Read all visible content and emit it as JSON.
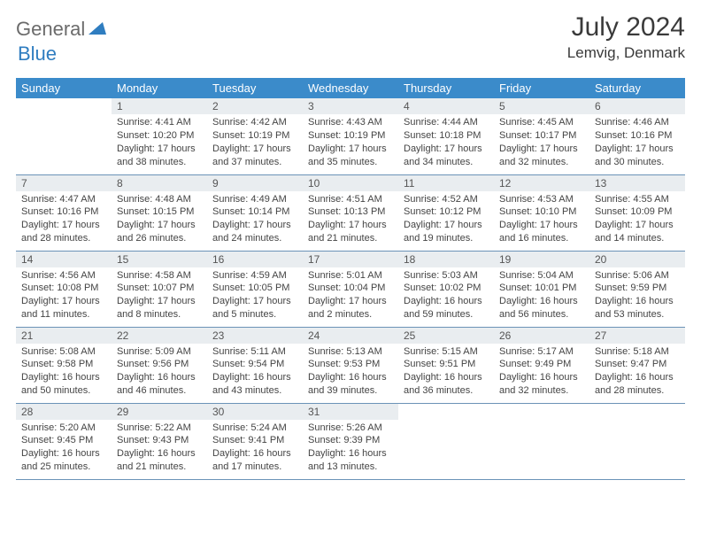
{
  "logo": {
    "part1": "General",
    "part2": "Blue"
  },
  "title": "July 2024",
  "location": "Lemvig, Denmark",
  "colors": {
    "header_bg": "#3b8bca",
    "header_text": "#ffffff",
    "daynum_bg": "#e9edf0",
    "border": "#6b93b7",
    "logo_gray": "#6b6b6b",
    "logo_blue": "#2f7dc0"
  },
  "weekdays": [
    "Sunday",
    "Monday",
    "Tuesday",
    "Wednesday",
    "Thursday",
    "Friday",
    "Saturday"
  ],
  "weeks": [
    [
      {
        "num": "",
        "lines": []
      },
      {
        "num": "1",
        "lines": [
          "Sunrise: 4:41 AM",
          "Sunset: 10:20 PM",
          "Daylight: 17 hours",
          "and 38 minutes."
        ]
      },
      {
        "num": "2",
        "lines": [
          "Sunrise: 4:42 AM",
          "Sunset: 10:19 PM",
          "Daylight: 17 hours",
          "and 37 minutes."
        ]
      },
      {
        "num": "3",
        "lines": [
          "Sunrise: 4:43 AM",
          "Sunset: 10:19 PM",
          "Daylight: 17 hours",
          "and 35 minutes."
        ]
      },
      {
        "num": "4",
        "lines": [
          "Sunrise: 4:44 AM",
          "Sunset: 10:18 PM",
          "Daylight: 17 hours",
          "and 34 minutes."
        ]
      },
      {
        "num": "5",
        "lines": [
          "Sunrise: 4:45 AM",
          "Sunset: 10:17 PM",
          "Daylight: 17 hours",
          "and 32 minutes."
        ]
      },
      {
        "num": "6",
        "lines": [
          "Sunrise: 4:46 AM",
          "Sunset: 10:16 PM",
          "Daylight: 17 hours",
          "and 30 minutes."
        ]
      }
    ],
    [
      {
        "num": "7",
        "lines": [
          "Sunrise: 4:47 AM",
          "Sunset: 10:16 PM",
          "Daylight: 17 hours",
          "and 28 minutes."
        ]
      },
      {
        "num": "8",
        "lines": [
          "Sunrise: 4:48 AM",
          "Sunset: 10:15 PM",
          "Daylight: 17 hours",
          "and 26 minutes."
        ]
      },
      {
        "num": "9",
        "lines": [
          "Sunrise: 4:49 AM",
          "Sunset: 10:14 PM",
          "Daylight: 17 hours",
          "and 24 minutes."
        ]
      },
      {
        "num": "10",
        "lines": [
          "Sunrise: 4:51 AM",
          "Sunset: 10:13 PM",
          "Daylight: 17 hours",
          "and 21 minutes."
        ]
      },
      {
        "num": "11",
        "lines": [
          "Sunrise: 4:52 AM",
          "Sunset: 10:12 PM",
          "Daylight: 17 hours",
          "and 19 minutes."
        ]
      },
      {
        "num": "12",
        "lines": [
          "Sunrise: 4:53 AM",
          "Sunset: 10:10 PM",
          "Daylight: 17 hours",
          "and 16 minutes."
        ]
      },
      {
        "num": "13",
        "lines": [
          "Sunrise: 4:55 AM",
          "Sunset: 10:09 PM",
          "Daylight: 17 hours",
          "and 14 minutes."
        ]
      }
    ],
    [
      {
        "num": "14",
        "lines": [
          "Sunrise: 4:56 AM",
          "Sunset: 10:08 PM",
          "Daylight: 17 hours",
          "and 11 minutes."
        ]
      },
      {
        "num": "15",
        "lines": [
          "Sunrise: 4:58 AM",
          "Sunset: 10:07 PM",
          "Daylight: 17 hours",
          "and 8 minutes."
        ]
      },
      {
        "num": "16",
        "lines": [
          "Sunrise: 4:59 AM",
          "Sunset: 10:05 PM",
          "Daylight: 17 hours",
          "and 5 minutes."
        ]
      },
      {
        "num": "17",
        "lines": [
          "Sunrise: 5:01 AM",
          "Sunset: 10:04 PM",
          "Daylight: 17 hours",
          "and 2 minutes."
        ]
      },
      {
        "num": "18",
        "lines": [
          "Sunrise: 5:03 AM",
          "Sunset: 10:02 PM",
          "Daylight: 16 hours",
          "and 59 minutes."
        ]
      },
      {
        "num": "19",
        "lines": [
          "Sunrise: 5:04 AM",
          "Sunset: 10:01 PM",
          "Daylight: 16 hours",
          "and 56 minutes."
        ]
      },
      {
        "num": "20",
        "lines": [
          "Sunrise: 5:06 AM",
          "Sunset: 9:59 PM",
          "Daylight: 16 hours",
          "and 53 minutes."
        ]
      }
    ],
    [
      {
        "num": "21",
        "lines": [
          "Sunrise: 5:08 AM",
          "Sunset: 9:58 PM",
          "Daylight: 16 hours",
          "and 50 minutes."
        ]
      },
      {
        "num": "22",
        "lines": [
          "Sunrise: 5:09 AM",
          "Sunset: 9:56 PM",
          "Daylight: 16 hours",
          "and 46 minutes."
        ]
      },
      {
        "num": "23",
        "lines": [
          "Sunrise: 5:11 AM",
          "Sunset: 9:54 PM",
          "Daylight: 16 hours",
          "and 43 minutes."
        ]
      },
      {
        "num": "24",
        "lines": [
          "Sunrise: 5:13 AM",
          "Sunset: 9:53 PM",
          "Daylight: 16 hours",
          "and 39 minutes."
        ]
      },
      {
        "num": "25",
        "lines": [
          "Sunrise: 5:15 AM",
          "Sunset: 9:51 PM",
          "Daylight: 16 hours",
          "and 36 minutes."
        ]
      },
      {
        "num": "26",
        "lines": [
          "Sunrise: 5:17 AM",
          "Sunset: 9:49 PM",
          "Daylight: 16 hours",
          "and 32 minutes."
        ]
      },
      {
        "num": "27",
        "lines": [
          "Sunrise: 5:18 AM",
          "Sunset: 9:47 PM",
          "Daylight: 16 hours",
          "and 28 minutes."
        ]
      }
    ],
    [
      {
        "num": "28",
        "lines": [
          "Sunrise: 5:20 AM",
          "Sunset: 9:45 PM",
          "Daylight: 16 hours",
          "and 25 minutes."
        ]
      },
      {
        "num": "29",
        "lines": [
          "Sunrise: 5:22 AM",
          "Sunset: 9:43 PM",
          "Daylight: 16 hours",
          "and 21 minutes."
        ]
      },
      {
        "num": "30",
        "lines": [
          "Sunrise: 5:24 AM",
          "Sunset: 9:41 PM",
          "Daylight: 16 hours",
          "and 17 minutes."
        ]
      },
      {
        "num": "31",
        "lines": [
          "Sunrise: 5:26 AM",
          "Sunset: 9:39 PM",
          "Daylight: 16 hours",
          "and 13 minutes."
        ]
      },
      {
        "num": "",
        "lines": []
      },
      {
        "num": "",
        "lines": []
      },
      {
        "num": "",
        "lines": []
      }
    ]
  ]
}
